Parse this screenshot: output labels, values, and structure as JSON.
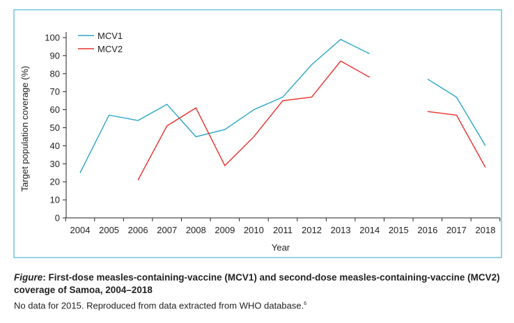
{
  "chart_data": {
    "type": "line",
    "x": [
      2004,
      2005,
      2006,
      2007,
      2008,
      2009,
      2010,
      2011,
      2012,
      2013,
      2014,
      2015,
      2016,
      2017,
      2018
    ],
    "series": [
      {
        "name": "MCV1",
        "color": "#2aa5c8",
        "values": [
          25,
          57,
          54,
          63,
          45,
          49,
          60,
          67,
          85,
          99,
          91,
          null,
          77,
          67,
          40
        ]
      },
      {
        "name": "MCV2",
        "color": "#e8302a",
        "values": [
          null,
          null,
          21,
          51,
          61,
          29,
          45,
          65,
          67,
          87,
          78,
          null,
          59,
          57,
          28
        ]
      }
    ],
    "xlabel": "Year",
    "ylabel": "Target population coverage (%)",
    "ylim": [
      0,
      100
    ],
    "yticks": [
      0,
      10,
      20,
      30,
      40,
      50,
      60,
      70,
      80,
      90,
      100
    ],
    "legend": "top-left",
    "grid": false
  },
  "caption": {
    "label": "Figure",
    "title": ": First-dose measles-containing-vaccine (MCV1) and second-dose measles-containing-vaccine (MCV2) coverage of Samoa, 2004–2018",
    "note": "No data for 2015. Reproduced from data extracted from WHO database.",
    "ref": "6"
  }
}
